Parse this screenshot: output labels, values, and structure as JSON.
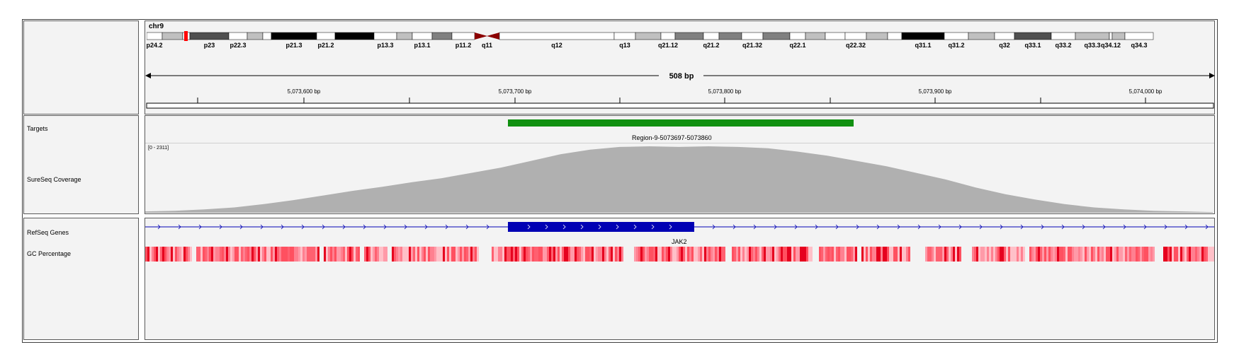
{
  "ideogram": {
    "chromosome": "chr9",
    "bands": [
      {
        "label": "p24.2",
        "stain": "white"
      },
      {
        "label": "",
        "stain": "gpos25"
      },
      {
        "label": "",
        "stain": "white"
      },
      {
        "label": "p23",
        "stain": "gpos75"
      },
      {
        "label": "p22.3",
        "stain": "white"
      },
      {
        "label": "",
        "stain": "gpos25"
      },
      {
        "label": "",
        "stain": "white"
      },
      {
        "label": "p21.3",
        "stain": "gpos100"
      },
      {
        "label": "p21.2",
        "stain": "white"
      },
      {
        "label": "",
        "stain": "gpos100"
      },
      {
        "label": "p13.3",
        "stain": "white"
      },
      {
        "label": "",
        "stain": "gpos25"
      },
      {
        "label": "p13.1",
        "stain": "white"
      },
      {
        "label": "",
        "stain": "gpos50"
      },
      {
        "label": "p11.2",
        "stain": "white"
      },
      {
        "label": "q11",
        "stain": "acen"
      },
      {
        "label": "q12",
        "stain": "white"
      },
      {
        "label": "q13",
        "stain": "white"
      },
      {
        "label": "",
        "stain": "gpos25"
      },
      {
        "label": "q21.12",
        "stain": "white"
      },
      {
        "label": "",
        "stain": "gpos50"
      },
      {
        "label": "q21.2",
        "stain": "white"
      },
      {
        "label": "",
        "stain": "gpos50"
      },
      {
        "label": "q21.32",
        "stain": "white"
      },
      {
        "label": "",
        "stain": "gpos50"
      },
      {
        "label": "q22.1",
        "stain": "white"
      },
      {
        "label": "",
        "stain": "gpos25"
      },
      {
        "label": "",
        "stain": "white"
      },
      {
        "label": "q22.32",
        "stain": "white"
      },
      {
        "label": "",
        "stain": "gpos25"
      },
      {
        "label": "",
        "stain": "white"
      },
      {
        "label": "q31.1",
        "stain": "gpos100"
      },
      {
        "label": "q31.2",
        "stain": "white"
      },
      {
        "label": "",
        "stain": "gpos25"
      },
      {
        "label": "q32",
        "stain": "white"
      },
      {
        "label": "q33.1",
        "stain": "gpos75"
      },
      {
        "label": "q33.2",
        "stain": "white"
      },
      {
        "label": "q33.3",
        "stain": "gpos25"
      },
      {
        "label": "q34.12",
        "stain": "white"
      },
      {
        "label": "",
        "stain": "gpos25"
      },
      {
        "label": "q34.3",
        "stain": "white"
      }
    ],
    "current_region_color": "#ff0000"
  },
  "ruler": {
    "span_label": "508 bp",
    "tick_labels": [
      "5,073,600 bp",
      "5,073,700 bp",
      "5,073,800 bp",
      "5,073,900 bp",
      "5,074,000 bp"
    ]
  },
  "tracks": {
    "targets_name": "Targets",
    "coverage_name": "SureSeq Coverage",
    "refseq_name": "RefSeq Genes",
    "gc_name": "GC Percentage"
  },
  "targets": {
    "feature_label": "Region-9-5073697-5073860",
    "color": "#109010"
  },
  "coverage": {
    "data_range": "[0 - 2311]",
    "color": "#b0b0b0",
    "profile": [
      0.02,
      0.03,
      0.05,
      0.08,
      0.13,
      0.19,
      0.26,
      0.33,
      0.39,
      0.46,
      0.52,
      0.6,
      0.68,
      0.78,
      0.88,
      0.95,
      0.99,
      1.0,
      0.99,
      1.0,
      0.99,
      0.97,
      0.92,
      0.86,
      0.78,
      0.7,
      0.6,
      0.5,
      0.38,
      0.28,
      0.2,
      0.13,
      0.08,
      0.05,
      0.03,
      0.02,
      0.01
    ]
  },
  "refseq": {
    "gene_name": "JAK2",
    "color": "#0000b4"
  },
  "gc": {
    "color_high": "#e6001e",
    "color_low": "#ffc0c8"
  }
}
